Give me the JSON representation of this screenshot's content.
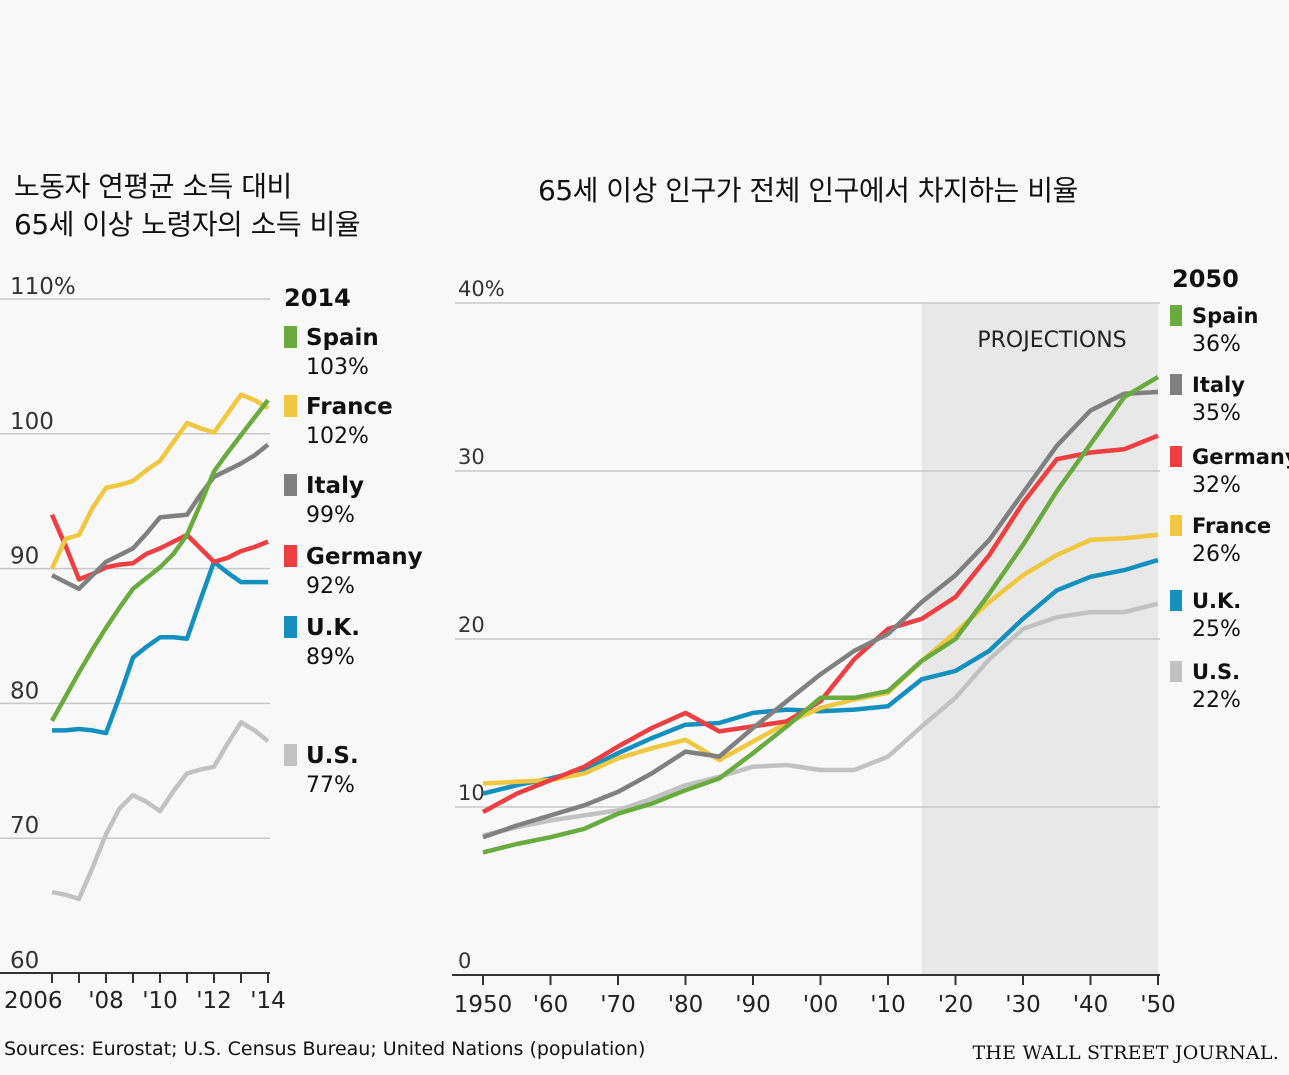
{
  "footer": {
    "source": "Sources: Eurostat; U.S. Census Bureau; United Nations (population)",
    "brand": "THE WALL STREET JOURNAL."
  },
  "colors": {
    "Spain": "#6aab3f",
    "France": "#f0c73e",
    "Italy": "#808080",
    "Germany": "#ef3e42",
    "U.K.": "#1490c0",
    "U.S.": "#c2c2c2",
    "grid": "#c8c8c8",
    "projection": "#e8e8e8"
  },
  "chart_data": [
    {
      "type": "line",
      "title": "노동자 연평균 소득 대비 65세 이상 노령자의 소득 비율",
      "title_lines": [
        "노동자 연평균 소득 대비",
        "65세 이상 노령자의 소득 비율"
      ],
      "ylim": [
        60,
        110
      ],
      "yticks": [
        60,
        70,
        80,
        90,
        100,
        110
      ],
      "ytick_labels": [
        "60",
        "70",
        "80",
        "90",
        "100",
        "110%"
      ],
      "xlim": [
        2006,
        2014
      ],
      "xticks": [
        2006,
        2007,
        2008,
        2009,
        2010,
        2011,
        2012,
        2013,
        2014
      ],
      "xtick_labels": [
        {
          "value": 2006,
          "label": "2006"
        },
        {
          "value": 2008,
          "label": "'08"
        },
        {
          "value": 2010,
          "label": "'10"
        },
        {
          "value": 2012,
          "label": "'12"
        },
        {
          "value": 2014,
          "label": "'14"
        }
      ],
      "legend_title": "2014",
      "legend_position": "right",
      "x": [
        2006.0,
        2006.5,
        2007.0,
        2007.5,
        2008.0,
        2008.5,
        2009.0,
        2009.5,
        2010.0,
        2010.5,
        2011.0,
        2011.5,
        2012.0,
        2012.5,
        2013.0,
        2013.5,
        2014.0
      ],
      "series": [
        {
          "name": "U.S.",
          "label": "77%",
          "values": [
            66,
            65.8,
            65.5,
            67.8,
            70.3,
            72.2,
            73.2,
            72.7,
            72.0,
            73.5,
            74.8,
            75.1,
            75.3,
            77.0,
            78.6,
            78.0,
            77.2
          ]
        },
        {
          "name": "U.K.",
          "label": "89%",
          "values": [
            78.0,
            78.0,
            78.1,
            78.0,
            77.8,
            80.5,
            83.4,
            84.2,
            84.9,
            84.9,
            84.8,
            87.7,
            90.5,
            89.7,
            89.0,
            89.0,
            89.0
          ]
        },
        {
          "name": "Germany",
          "label": "92%",
          "values": [
            94.0,
            91.7,
            89.2,
            89.6,
            90.1,
            90.3,
            90.4,
            91.1,
            91.5,
            92.0,
            92.5,
            91.5,
            90.5,
            90.8,
            91.3,
            91.6,
            92.0
          ]
        },
        {
          "name": "Italy",
          "label": "99%",
          "values": [
            89.5,
            89.0,
            88.5,
            89.5,
            90.5,
            91.0,
            91.5,
            92.6,
            93.8,
            93.9,
            94.0,
            95.5,
            96.8,
            97.3,
            97.8,
            98.4,
            99.2
          ]
        },
        {
          "name": "France",
          "label": "102%",
          "values": [
            90.0,
            92.2,
            92.5,
            94.5,
            96.0,
            96.2,
            96.5,
            97.3,
            98.0,
            99.4,
            100.8,
            100.4,
            100.1,
            101.5,
            102.9,
            102.5,
            101.9
          ]
        },
        {
          "name": "Spain",
          "label": "103%",
          "values": [
            78.7,
            80.5,
            82.3,
            84.0,
            85.6,
            87.1,
            88.5,
            89.3,
            90.1,
            91.1,
            92.5,
            94.8,
            97.2,
            98.6,
            99.9,
            101.2,
            102.5
          ]
        }
      ]
    },
    {
      "type": "line",
      "title": "65세 이상 인구가 전체 인구에서 차지하는 비율",
      "ylim": [
        0,
        40
      ],
      "yticks": [
        0,
        10,
        20,
        30,
        40
      ],
      "ytick_labels": [
        "0",
        "10",
        "20",
        "30",
        "40%"
      ],
      "xlim": [
        1950,
        2050
      ],
      "xticks": [
        1950,
        1960,
        1970,
        1980,
        1990,
        2000,
        2010,
        2020,
        2030,
        2040,
        2050
      ],
      "xtick_labels": [
        "1950",
        "'60",
        "'70",
        "'80",
        "'90",
        "'00",
        "'10",
        "'20",
        "'30",
        "'40",
        "'50"
      ],
      "annotation": "PROJECTIONS",
      "projection_range": [
        2015,
        2050
      ],
      "legend_title": "2050",
      "legend_position": "right",
      "x": [
        1950,
        1955,
        1960,
        1965,
        1970,
        1975,
        1980,
        1985,
        1990,
        1995,
        2000,
        2005,
        2010,
        2015,
        2020,
        2025,
        2030,
        2035,
        2040,
        2045,
        2050
      ],
      "series": [
        {
          "name": "U.S.",
          "label": "22%",
          "values": [
            8.3,
            8.8,
            9.2,
            9.5,
            9.8,
            10.5,
            11.3,
            11.8,
            12.4,
            12.5,
            12.2,
            12.2,
            13.0,
            14.8,
            16.5,
            18.8,
            20.6,
            21.3,
            21.6,
            21.6,
            22.1
          ]
        },
        {
          "name": "U.K.",
          "label": "25%",
          "values": [
            10.8,
            11.3,
            11.7,
            12.2,
            13.2,
            14.1,
            14.9,
            15.0,
            15.6,
            15.8,
            15.7,
            15.8,
            16.0,
            17.6,
            18.1,
            19.3,
            21.2,
            22.9,
            23.7,
            24.1,
            24.7
          ]
        },
        {
          "name": "France",
          "label": "26%",
          "values": [
            11.4,
            11.5,
            11.6,
            12.0,
            12.9,
            13.5,
            14.0,
            12.8,
            13.9,
            15.0,
            15.9,
            16.4,
            16.8,
            18.7,
            20.4,
            22.2,
            23.8,
            25.0,
            25.9,
            26.0,
            26.2
          ]
        },
        {
          "name": "Germany",
          "label": "32%",
          "values": [
            9.7,
            10.8,
            11.6,
            12.4,
            13.6,
            14.7,
            15.6,
            14.5,
            14.8,
            15.1,
            16.3,
            18.8,
            20.6,
            21.2,
            22.5,
            25.0,
            28.1,
            30.7,
            31.1,
            31.3,
            32.1
          ]
        },
        {
          "name": "Italy",
          "label": "35%",
          "values": [
            8.2,
            8.9,
            9.5,
            10.1,
            10.9,
            12.0,
            13.3,
            13.0,
            14.7,
            16.3,
            17.9,
            19.3,
            20.3,
            22.2,
            23.8,
            25.9,
            28.7,
            31.5,
            33.6,
            34.6,
            34.7
          ]
        },
        {
          "name": "Spain",
          "label": "36%",
          "values": [
            7.3,
            7.8,
            8.2,
            8.7,
            9.6,
            10.2,
            11.0,
            11.7,
            13.2,
            14.8,
            16.5,
            16.5,
            16.9,
            18.7,
            20.0,
            22.7,
            25.6,
            28.8,
            31.6,
            34.4,
            35.6
          ]
        }
      ]
    }
  ]
}
